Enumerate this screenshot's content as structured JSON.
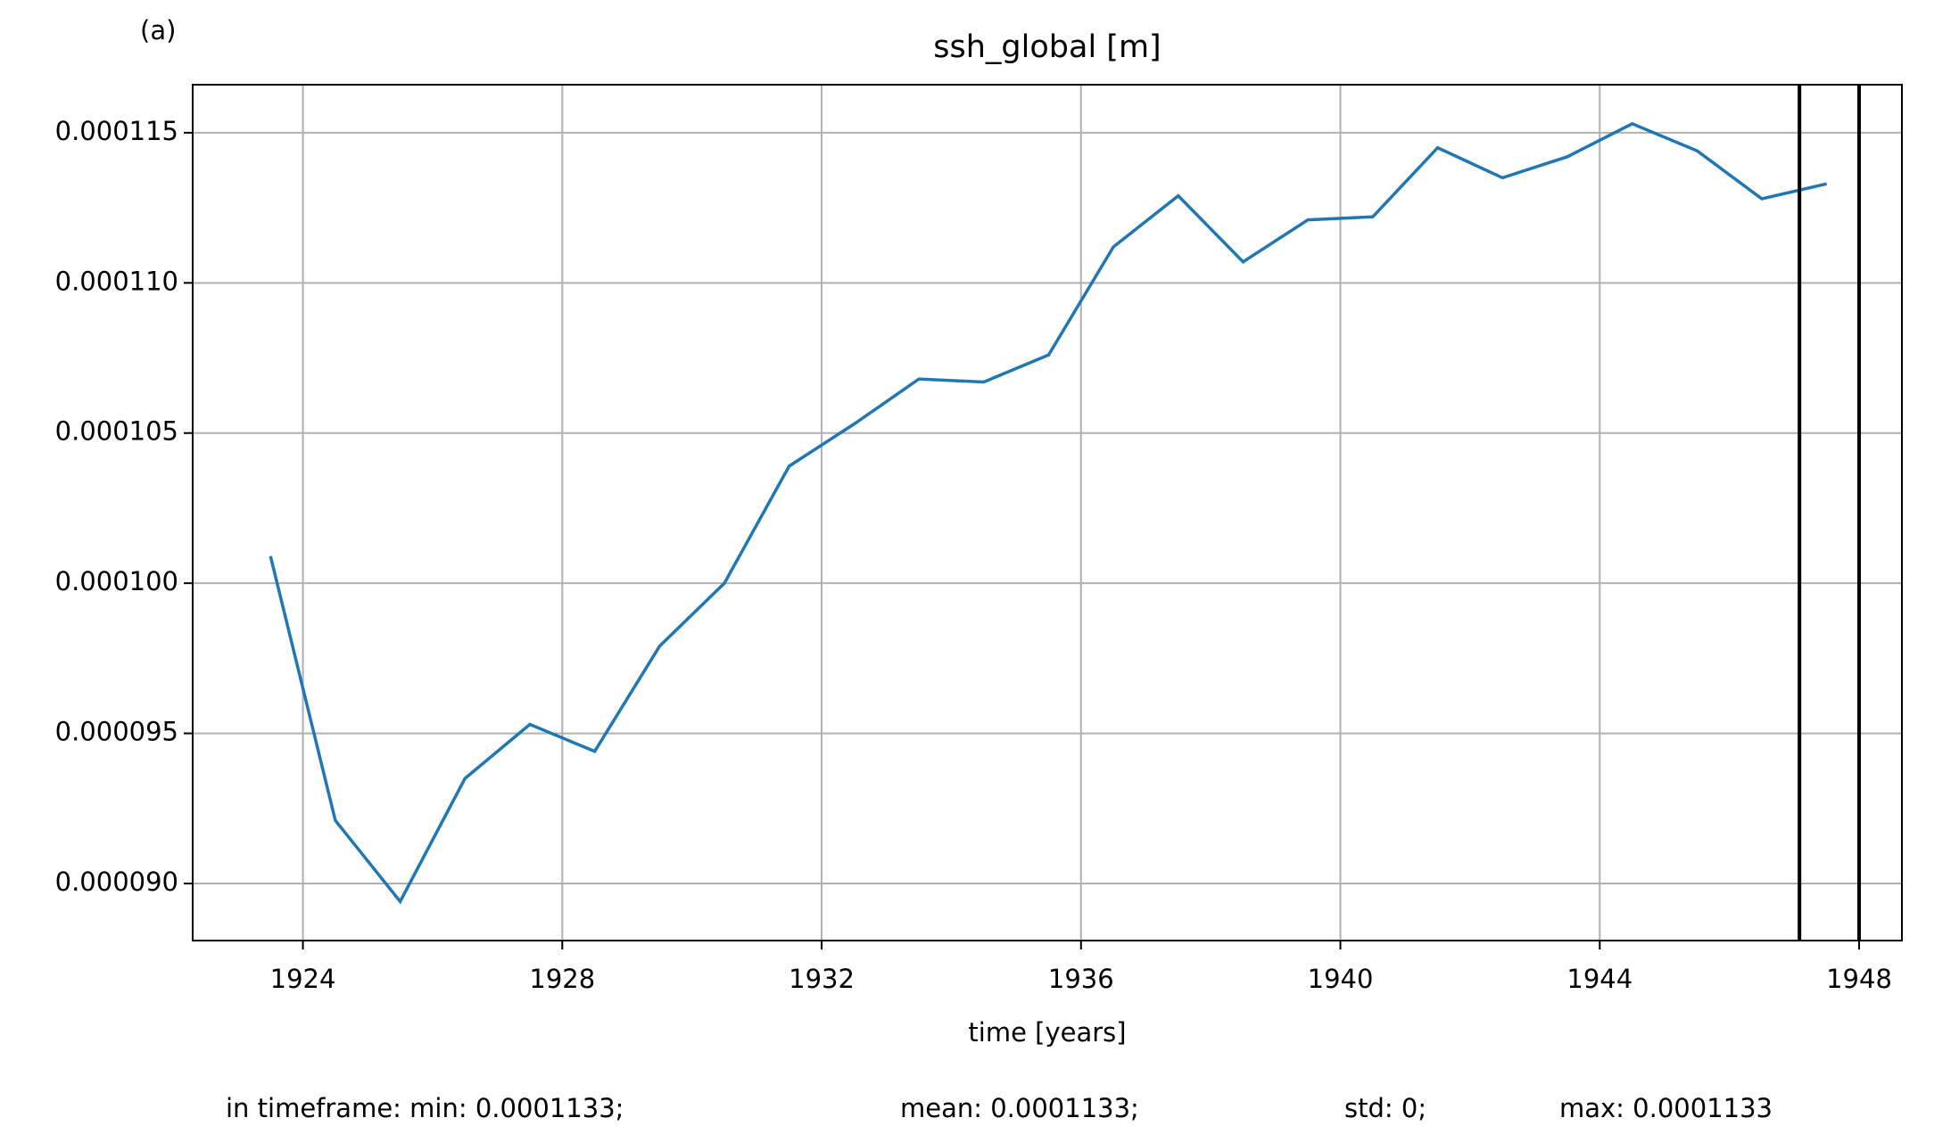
{
  "chart_data": {
    "type": "line",
    "panel_label": "(a)",
    "title": "ssh_global [m]",
    "x_label": "time [years]",
    "x": [
      1923.5,
      1924.5,
      1925.5,
      1926.5,
      1927.5,
      1928.5,
      1929.5,
      1930.5,
      1931.5,
      1932.5,
      1933.5,
      1934.5,
      1935.5,
      1936.5,
      1937.5,
      1938.5,
      1939.5,
      1940.5,
      1941.5,
      1942.5,
      1943.5,
      1944.5,
      1945.5,
      1946.5,
      1947.5
    ],
    "series": [
      {
        "color": "#1f77b4",
        "values": [
          0.0001009,
          9.21e-05,
          8.94e-05,
          9.35e-05,
          9.53e-05,
          9.44e-05,
          9.79e-05,
          0.0001,
          0.0001039,
          0.0001053,
          0.0001068,
          0.0001067,
          0.0001076,
          0.0001112,
          0.0001129,
          0.0001107,
          0.0001121,
          0.0001122,
          0.0001145,
          0.0001135,
          0.0001142,
          0.0001153,
          0.0001144,
          0.0001128,
          0.0001133
        ]
      }
    ],
    "vlines": [
      1947.08,
      1948.0
    ],
    "vline_color": "#000000",
    "xlim": [
      1922.3,
      1948.66
    ],
    "xticks": [
      1924,
      1928,
      1932,
      1936,
      1940,
      1944,
      1948
    ],
    "ylim": [
      8.81e-05,
      0.0001166
    ],
    "yticks": [
      {
        "value": 9e-05,
        "label": "0.000090"
      },
      9.5e-05,
      {
        "value": 0.0001,
        "label": "0.000100"
      },
      0.000105,
      {
        "value": 0.00011,
        "label": "0.000110"
      },
      0.000115
    ],
    "grid": true,
    "stats": [
      "in timeframe: min: 0.0001133;",
      "mean: 0.0001133;",
      "std: 0;",
      "max: 0.0001133"
    ]
  }
}
